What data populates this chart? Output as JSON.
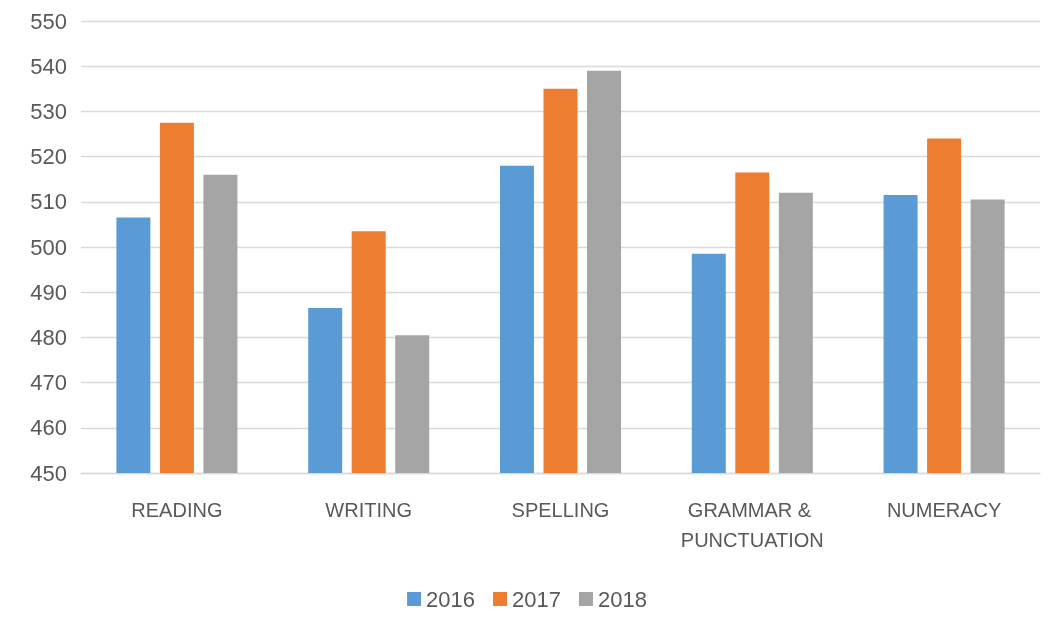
{
  "chart_data": {
    "type": "bar",
    "categories": [
      "READING",
      "WRITING",
      "SPELLING",
      "GRAMMAR & PUNCTUATION",
      "NUMERACY"
    ],
    "series": [
      {
        "name": "2016",
        "color": "#5b9bd5",
        "values": [
          506.5,
          486.5,
          518,
          498.5,
          511.5
        ]
      },
      {
        "name": "2017",
        "color": "#ed7d31",
        "values": [
          527.5,
          503.5,
          535,
          516.5,
          524
        ]
      },
      {
        "name": "2018",
        "color": "#a5a5a5",
        "values": [
          516,
          480.5,
          539,
          512,
          510.5
        ]
      }
    ],
    "ylim": [
      450,
      550
    ],
    "yticks": [
      450,
      460,
      470,
      480,
      490,
      500,
      510,
      520,
      530,
      540,
      550
    ],
    "grid": "y",
    "legend": "bottom"
  }
}
